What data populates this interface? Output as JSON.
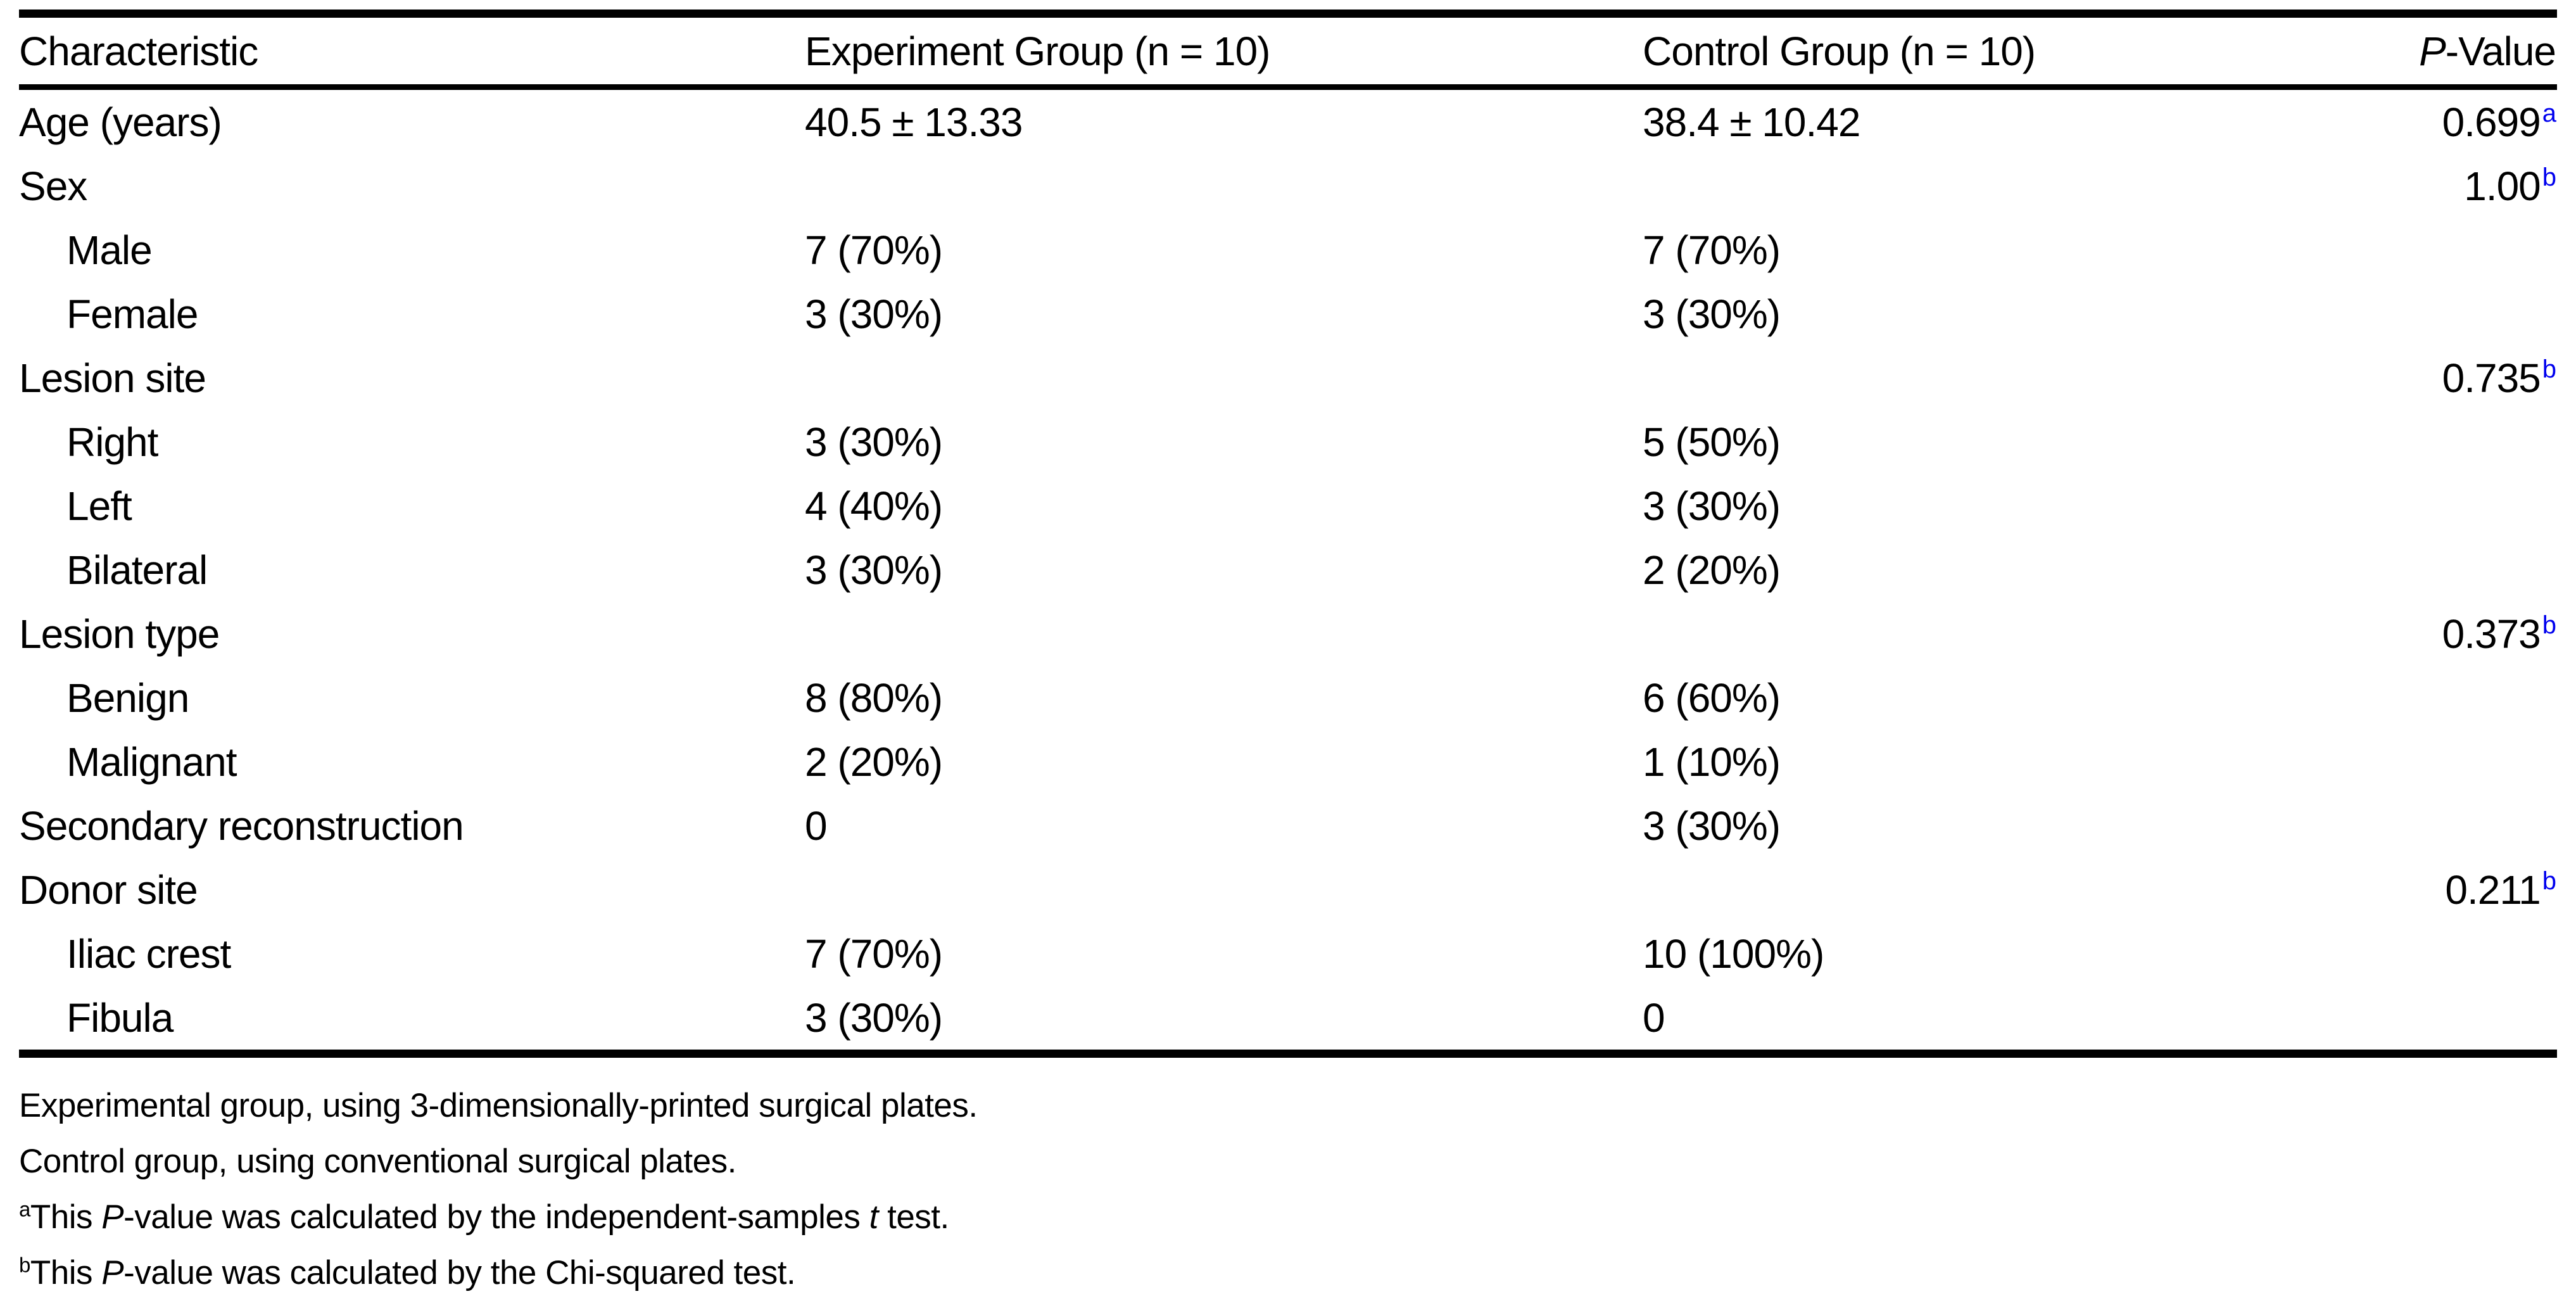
{
  "page": {
    "background": "#ffffff",
    "text_color": "#000000",
    "superscript_color": "#0000ee"
  },
  "table": {
    "col_headers": {
      "characteristic": "Characteristic",
      "experiment": "Experiment Group (n = 10)",
      "control": "Control Group (n = 10)",
      "p_italic": "P",
      "p_rest": "-Value"
    },
    "rows": [
      {
        "label": "Age (years)",
        "indent": false,
        "experiment": "40.5 ± 13.33",
        "control": "38.4 ± 10.42",
        "p": "0.699",
        "p_sup": "a"
      },
      {
        "label": "Sex",
        "indent": false,
        "experiment": "",
        "control": "",
        "p": "1.00",
        "p_sup": "b"
      },
      {
        "label": "Male",
        "indent": true,
        "experiment": "7 (70%)",
        "control": "7 (70%)",
        "p": "",
        "p_sup": ""
      },
      {
        "label": "Female",
        "indent": true,
        "experiment": "3 (30%)",
        "control": "3 (30%)",
        "p": "",
        "p_sup": ""
      },
      {
        "label": "Lesion site",
        "indent": false,
        "experiment": "",
        "control": "",
        "p": "0.735",
        "p_sup": "b"
      },
      {
        "label": "Right",
        "indent": true,
        "experiment": "3 (30%)",
        "control": "5 (50%)",
        "p": "",
        "p_sup": ""
      },
      {
        "label": "Left",
        "indent": true,
        "experiment": "4 (40%)",
        "control": "3 (30%)",
        "p": "",
        "p_sup": ""
      },
      {
        "label": "Bilateral",
        "indent": true,
        "experiment": "3 (30%)",
        "control": "2 (20%)",
        "p": "",
        "p_sup": ""
      },
      {
        "label": "Lesion type",
        "indent": false,
        "experiment": "",
        "control": "",
        "p": "0.373",
        "p_sup": "b"
      },
      {
        "label": "Benign",
        "indent": true,
        "experiment": "8 (80%)",
        "control": "6 (60%)",
        "p": "",
        "p_sup": ""
      },
      {
        "label": "Malignant",
        "indent": true,
        "experiment": "2 (20%)",
        "control": "1 (10%)",
        "p": "",
        "p_sup": ""
      },
      {
        "label": "Secondary reconstruction",
        "indent": false,
        "experiment": "0",
        "control": "3 (30%)",
        "p": "",
        "p_sup": ""
      },
      {
        "label": "Donor site",
        "indent": false,
        "experiment": "",
        "control": "",
        "p": "0.211",
        "p_sup": "b"
      },
      {
        "label": "Iliac crest",
        "indent": true,
        "experiment": "7 (70%)",
        "control": "10 (100%)",
        "p": "",
        "p_sup": ""
      },
      {
        "label": "Fibula",
        "indent": true,
        "experiment": "3 (30%)",
        "control": "0",
        "p": "",
        "p_sup": ""
      }
    ]
  },
  "footnotes": [
    {
      "parts": [
        {
          "t": "Experimental group, using 3-dimensionally-printed surgical plates.",
          "s": "n"
        }
      ]
    },
    {
      "parts": [
        {
          "t": "Control group, using conventional surgical plates.",
          "s": "n"
        }
      ]
    },
    {
      "parts": [
        {
          "t": "a",
          "s": "sup"
        },
        {
          "t": "This ",
          "s": "n"
        },
        {
          "t": "P",
          "s": "i"
        },
        {
          "t": "-value was calculated by the independent-samples ",
          "s": "n"
        },
        {
          "t": "t",
          "s": "i"
        },
        {
          "t": " test.",
          "s": "n"
        }
      ]
    },
    {
      "parts": [
        {
          "t": "b",
          "s": "sup"
        },
        {
          "t": "This ",
          "s": "n"
        },
        {
          "t": "P",
          "s": "i"
        },
        {
          "t": "-value was calculated by the Chi-squared test.",
          "s": "n"
        }
      ]
    }
  ]
}
